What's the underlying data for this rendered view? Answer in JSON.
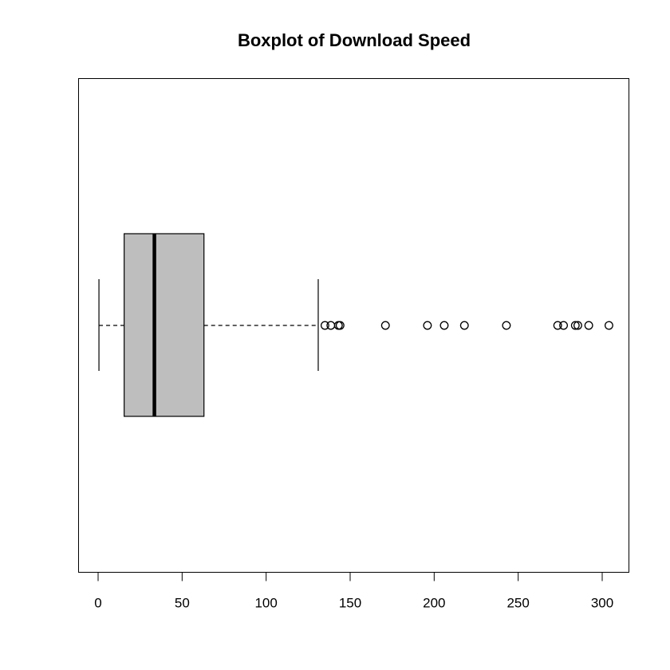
{
  "chart_data": {
    "type": "boxplot",
    "orientation": "horizontal",
    "title": "Boxplot of Download Speed",
    "xlabel": "",
    "ylabel": "",
    "xlim": [
      -12,
      315
    ],
    "x_ticks": [
      0,
      50,
      100,
      150,
      200,
      250,
      300
    ],
    "grid": false,
    "box": {
      "whisker_low": 0.5,
      "q1": 15.5,
      "median": 33.5,
      "q3": 63,
      "whisker_high": 131
    },
    "outliers": [
      135,
      138.5,
      143,
      144,
      171,
      196,
      206,
      218,
      243,
      273.5,
      277,
      284,
      285.5,
      292,
      304
    ],
    "colors": {
      "box_fill": "#bebebe",
      "stroke": "#000000"
    }
  }
}
